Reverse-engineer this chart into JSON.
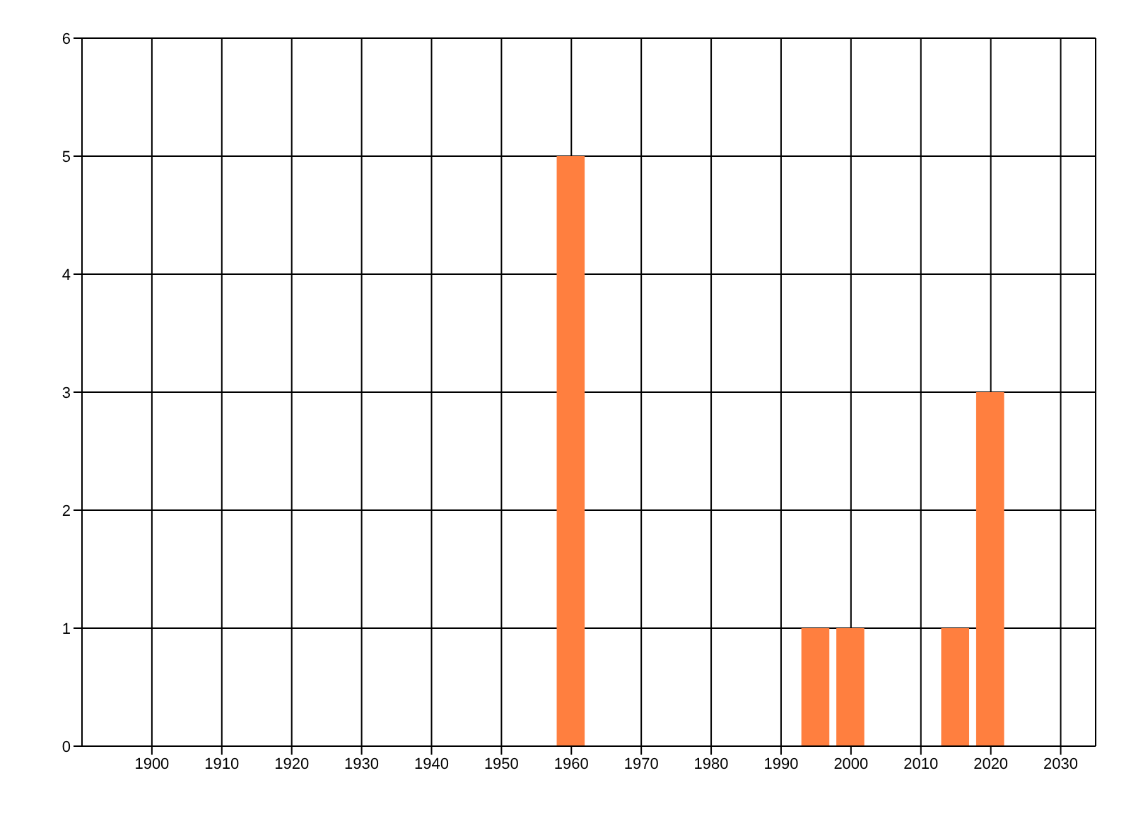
{
  "chart_data": {
    "type": "bar",
    "x": [
      1960,
      1995,
      2000,
      2015,
      2020
    ],
    "values": [
      5,
      1,
      1,
      1,
      3
    ],
    "color": "#ff7f3f",
    "xlim": [
      1890,
      2035
    ],
    "xticks": [
      1900,
      1910,
      1920,
      1930,
      1940,
      1950,
      1960,
      1970,
      1980,
      1990,
      2000,
      2010,
      2020,
      2030
    ],
    "ylim": [
      0,
      6
    ],
    "yticks": [
      0,
      1,
      2,
      3,
      4,
      5,
      6
    ],
    "grid": true,
    "legend": false
  }
}
